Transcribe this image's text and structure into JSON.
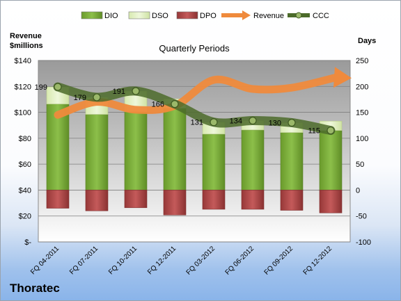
{
  "chart_data": {
    "type": "bar",
    "title": "Quarterly Periods",
    "company": "Thoratec",
    "left_axis": {
      "label_lines": [
        "Revenue",
        "$millions"
      ],
      "range": [
        0,
        140
      ],
      "ticks": [
        "$-",
        "$20",
        "$40",
        "$60",
        "$80",
        "$100",
        "$120",
        "$140"
      ]
    },
    "right_axis": {
      "label": "Days",
      "range": [
        -100,
        250
      ],
      "ticks": [
        "-100",
        "-50",
        "0",
        "50",
        "100",
        "150",
        "200",
        "250"
      ]
    },
    "categories": [
      "FQ 04-2011",
      "FQ 07-2011",
      "FQ 10-2011",
      "FQ 12-2011",
      "FQ 03-2012",
      "FQ 06-2012",
      "FQ 09-2012",
      "FQ 12-2012"
    ],
    "series": [
      {
        "name": "DIO",
        "axis": "right",
        "kind": "stacked-bar",
        "color": "#7aa83a",
        "values": [
          166,
          146,
          151,
          158,
          108,
          116,
          111,
          115
        ]
      },
      {
        "name": "DSO",
        "axis": "right",
        "kind": "stacked-bar",
        "color": "#e4f1c7",
        "values": [
          33,
          33,
          40,
          18,
          23,
          18,
          19,
          18
        ]
      },
      {
        "name": "DPO",
        "axis": "right",
        "kind": "negative-bar",
        "color": "#b04a4a",
        "values": [
          -35,
          -40,
          -34,
          -48,
          -37,
          -37,
          -39,
          -44
        ]
      },
      {
        "name": "Revenue",
        "axis": "left",
        "kind": "arrow-line",
        "color": "#ef8a3c",
        "values": [
          98,
          108,
          102,
          105,
          125,
          118,
          119,
          127
        ]
      },
      {
        "name": "CCC",
        "axis": "right",
        "kind": "line-markers",
        "color": "#4c6b2a",
        "values": [
          199,
          179,
          191,
          166,
          131,
          134,
          130,
          115
        ]
      }
    ],
    "legend": {
      "placement": "top",
      "items": [
        "DIO",
        "DSO",
        "DPO",
        "Revenue",
        "CCC"
      ]
    },
    "grid": true
  }
}
